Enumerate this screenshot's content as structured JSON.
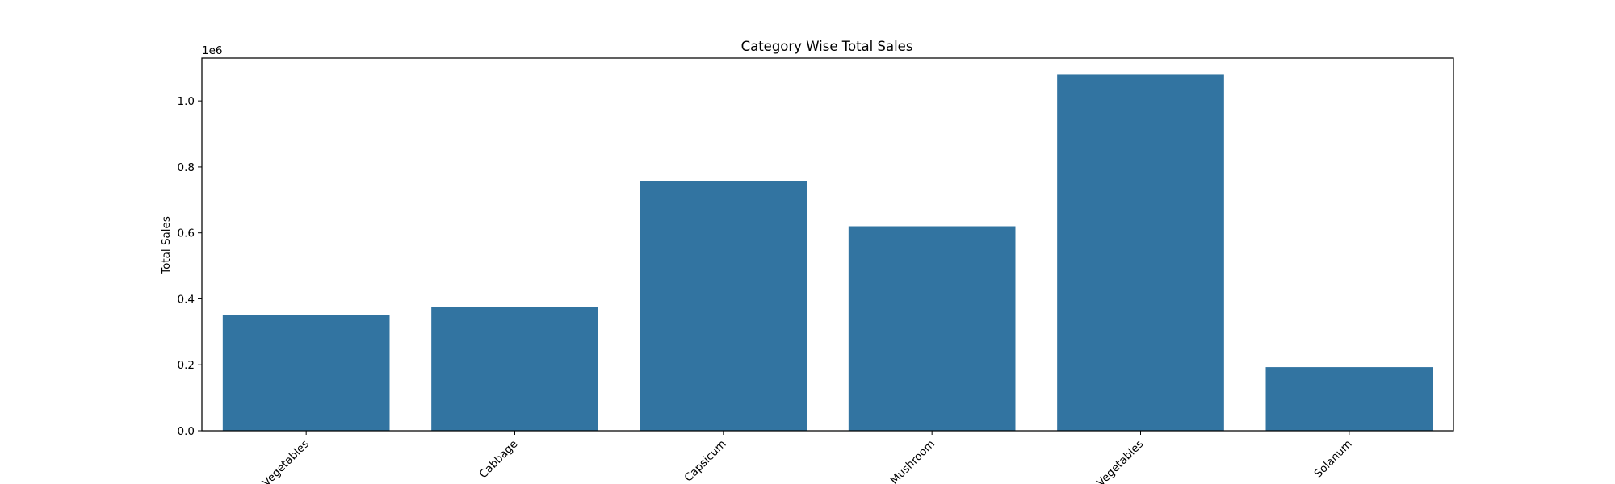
{
  "chart_data": {
    "type": "bar",
    "title": "Category Wise Total Sales",
    "xlabel": "",
    "ylabel": "Total Sales",
    "y_offset_label": "1e6",
    "categories": [
      "Vegetables",
      "Cabbage",
      "Capsicum",
      "Mushroom",
      "Vegetables",
      "Solanum"
    ],
    "values": [
      351000,
      376000,
      756000,
      620000,
      1080000,
      193000
    ],
    "ylim": [
      0,
      1130000
    ],
    "yticks": [
      0,
      200000,
      400000,
      600000,
      800000,
      1000000
    ],
    "ytick_labels": [
      "0.0",
      "0.2",
      "0.4",
      "0.6",
      "0.8",
      "1.0"
    ],
    "grid": false,
    "bar_color": "#3274a1"
  }
}
